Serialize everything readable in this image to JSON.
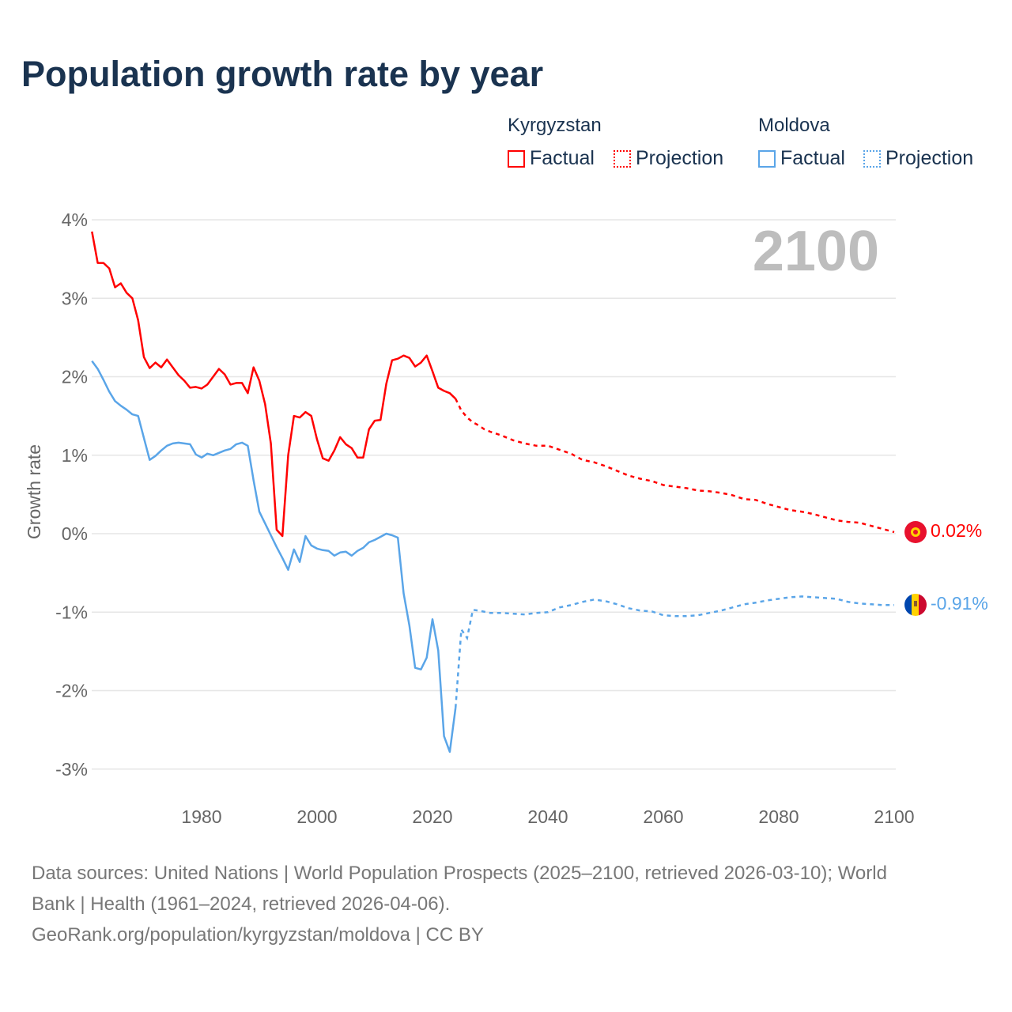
{
  "title": "Population growth rate by year",
  "legend": {
    "groups": [
      {
        "country": "Kyrgyzstan",
        "color": "#ff0000",
        "factual": "Factual",
        "projection": "Projection"
      },
      {
        "country": "Moldova",
        "color": "#5aa5e8",
        "factual": "Factual",
        "projection": "Projection"
      }
    ]
  },
  "year_label": "2100",
  "footer": {
    "line1": "Data sources: United Nations | World Population Prospects (2025–2100, retrieved 2026-03-10); World",
    "line2": "Bank | Health (1961–2024, retrieved 2026-04-06).",
    "line3": "GeoRank.org/population/kyrgyzstan/moldova | CC BY"
  },
  "chart_data": {
    "type": "line",
    "title": "Population growth rate by year",
    "xlabel": "",
    "ylabel": "Growth rate",
    "xlim": [
      1961,
      2100
    ],
    "ylim": [
      -3.3,
      4.2
    ],
    "xticks": [
      1980,
      2000,
      2020,
      2040,
      2060,
      2080,
      2100
    ],
    "yticks": [
      {
        "v": 4,
        "label": "4%"
      },
      {
        "v": 3,
        "label": "3%"
      },
      {
        "v": 2,
        "label": "2%"
      },
      {
        "v": 1,
        "label": "1%"
      },
      {
        "v": 0,
        "label": "0%"
      },
      {
        "v": -1,
        "label": "-1%"
      },
      {
        "v": -2,
        "label": "-2%"
      },
      {
        "v": -3,
        "label": "-3%"
      }
    ],
    "grid": true,
    "series": [
      {
        "name": "Kyrgyzstan",
        "color": "#ff0000",
        "end_label": "0.02%",
        "factual": [
          [
            1961,
            3.85
          ],
          [
            1962,
            3.45
          ],
          [
            1963,
            3.45
          ],
          [
            1964,
            3.38
          ],
          [
            1965,
            3.14
          ],
          [
            1966,
            3.19
          ],
          [
            1967,
            3.07
          ],
          [
            1968,
            3.0
          ],
          [
            1969,
            2.72
          ],
          [
            1970,
            2.25
          ],
          [
            1971,
            2.11
          ],
          [
            1972,
            2.18
          ],
          [
            1973,
            2.12
          ],
          [
            1974,
            2.22
          ],
          [
            1975,
            2.12
          ],
          [
            1976,
            2.02
          ],
          [
            1977,
            1.95
          ],
          [
            1978,
            1.86
          ],
          [
            1979,
            1.87
          ],
          [
            1980,
            1.85
          ],
          [
            1981,
            1.9
          ],
          [
            1982,
            2.0
          ],
          [
            1983,
            2.1
          ],
          [
            1984,
            2.03
          ],
          [
            1985,
            1.9
          ],
          [
            1986,
            1.92
          ],
          [
            1987,
            1.92
          ],
          [
            1988,
            1.79
          ],
          [
            1989,
            2.12
          ],
          [
            1990,
            1.95
          ],
          [
            1991,
            1.65
          ],
          [
            1992,
            1.15
          ],
          [
            1993,
            0.05
          ],
          [
            1994,
            -0.03
          ],
          [
            1995,
            1.0
          ],
          [
            1996,
            1.5
          ],
          [
            1997,
            1.48
          ],
          [
            1998,
            1.55
          ],
          [
            1999,
            1.5
          ],
          [
            2000,
            1.2
          ],
          [
            2001,
            0.96
          ],
          [
            2002,
            0.93
          ],
          [
            2003,
            1.06
          ],
          [
            2004,
            1.23
          ],
          [
            2005,
            1.14
          ],
          [
            2006,
            1.09
          ],
          [
            2007,
            0.97
          ],
          [
            2008,
            0.97
          ],
          [
            2009,
            1.33
          ],
          [
            2010,
            1.44
          ],
          [
            2011,
            1.45
          ],
          [
            2012,
            1.91
          ],
          [
            2013,
            2.21
          ],
          [
            2014,
            2.23
          ],
          [
            2015,
            2.27
          ],
          [
            2016,
            2.24
          ],
          [
            2017,
            2.13
          ],
          [
            2018,
            2.18
          ],
          [
            2019,
            2.27
          ],
          [
            2020,
            2.07
          ],
          [
            2021,
            1.86
          ],
          [
            2022,
            1.82
          ],
          [
            2023,
            1.79
          ],
          [
            2024,
            1.72
          ]
        ],
        "projection": [
          [
            2024,
            1.72
          ],
          [
            2025,
            1.57
          ],
          [
            2026,
            1.48
          ],
          [
            2027,
            1.42
          ],
          [
            2028,
            1.38
          ],
          [
            2029,
            1.33
          ],
          [
            2030,
            1.3
          ],
          [
            2032,
            1.25
          ],
          [
            2034,
            1.19
          ],
          [
            2036,
            1.15
          ],
          [
            2038,
            1.12
          ],
          [
            2040,
            1.12
          ],
          [
            2042,
            1.07
          ],
          [
            2044,
            1.02
          ],
          [
            2046,
            0.94
          ],
          [
            2048,
            0.91
          ],
          [
            2050,
            0.86
          ],
          [
            2052,
            0.8
          ],
          [
            2054,
            0.74
          ],
          [
            2056,
            0.7
          ],
          [
            2058,
            0.67
          ],
          [
            2060,
            0.62
          ],
          [
            2062,
            0.6
          ],
          [
            2064,
            0.58
          ],
          [
            2066,
            0.55
          ],
          [
            2068,
            0.54
          ],
          [
            2070,
            0.52
          ],
          [
            2072,
            0.49
          ],
          [
            2074,
            0.44
          ],
          [
            2076,
            0.43
          ],
          [
            2078,
            0.38
          ],
          [
            2080,
            0.34
          ],
          [
            2082,
            0.3
          ],
          [
            2084,
            0.28
          ],
          [
            2086,
            0.25
          ],
          [
            2088,
            0.21
          ],
          [
            2090,
            0.17
          ],
          [
            2092,
            0.15
          ],
          [
            2094,
            0.14
          ],
          [
            2096,
            0.1
          ],
          [
            2098,
            0.06
          ],
          [
            2100,
            0.02
          ]
        ]
      },
      {
        "name": "Moldova",
        "color": "#5aa5e8",
        "end_label": "-0.91%",
        "factual": [
          [
            1961,
            2.2
          ],
          [
            1962,
            2.1
          ],
          [
            1963,
            1.96
          ],
          [
            1964,
            1.81
          ],
          [
            1965,
            1.69
          ],
          [
            1966,
            1.63
          ],
          [
            1967,
            1.58
          ],
          [
            1968,
            1.52
          ],
          [
            1969,
            1.5
          ],
          [
            1970,
            1.22
          ],
          [
            1971,
            0.94
          ],
          [
            1972,
            0.99
          ],
          [
            1973,
            1.06
          ],
          [
            1974,
            1.12
          ],
          [
            1975,
            1.15
          ],
          [
            1976,
            1.16
          ],
          [
            1977,
            1.15
          ],
          [
            1978,
            1.14
          ],
          [
            1979,
            1.01
          ],
          [
            1980,
            0.97
          ],
          [
            1981,
            1.02
          ],
          [
            1982,
            1.0
          ],
          [
            1983,
            1.03
          ],
          [
            1984,
            1.06
          ],
          [
            1985,
            1.08
          ],
          [
            1986,
            1.14
          ],
          [
            1987,
            1.16
          ],
          [
            1988,
            1.12
          ],
          [
            1989,
            0.68
          ],
          [
            1990,
            0.28
          ],
          [
            1991,
            0.13
          ],
          [
            1992,
            -0.02
          ],
          [
            1993,
            -0.17
          ],
          [
            1994,
            -0.31
          ],
          [
            1995,
            -0.46
          ],
          [
            1996,
            -0.2
          ],
          [
            1997,
            -0.36
          ],
          [
            1998,
            -0.03
          ],
          [
            1999,
            -0.15
          ],
          [
            2000,
            -0.19
          ],
          [
            2001,
            -0.21
          ],
          [
            2002,
            -0.22
          ],
          [
            2003,
            -0.28
          ],
          [
            2004,
            -0.24
          ],
          [
            2005,
            -0.23
          ],
          [
            2006,
            -0.28
          ],
          [
            2007,
            -0.22
          ],
          [
            2008,
            -0.18
          ],
          [
            2009,
            -0.11
          ],
          [
            2010,
            -0.08
          ],
          [
            2011,
            -0.04
          ],
          [
            2012,
            0.0
          ],
          [
            2013,
            -0.02
          ],
          [
            2014,
            -0.05
          ],
          [
            2015,
            -0.76
          ],
          [
            2016,
            -1.17
          ],
          [
            2017,
            -1.71
          ],
          [
            2018,
            -1.73
          ],
          [
            2019,
            -1.58
          ],
          [
            2020,
            -1.09
          ],
          [
            2021,
            -1.49
          ],
          [
            2022,
            -2.58
          ],
          [
            2023,
            -2.78
          ],
          [
            2024,
            -2.22
          ]
        ],
        "projection": [
          [
            2024,
            -2.22
          ],
          [
            2025,
            -1.22
          ],
          [
            2026,
            -1.33
          ],
          [
            2027,
            -0.97
          ],
          [
            2028,
            -0.98
          ],
          [
            2030,
            -1.01
          ],
          [
            2032,
            -1.01
          ],
          [
            2034,
            -1.02
          ],
          [
            2036,
            -1.03
          ],
          [
            2038,
            -1.01
          ],
          [
            2040,
            -1.0
          ],
          [
            2042,
            -0.94
          ],
          [
            2044,
            -0.91
          ],
          [
            2046,
            -0.87
          ],
          [
            2048,
            -0.84
          ],
          [
            2050,
            -0.86
          ],
          [
            2052,
            -0.9
          ],
          [
            2054,
            -0.95
          ],
          [
            2056,
            -0.98
          ],
          [
            2058,
            -0.99
          ],
          [
            2060,
            -1.04
          ],
          [
            2062,
            -1.05
          ],
          [
            2064,
            -1.05
          ],
          [
            2066,
            -1.04
          ],
          [
            2068,
            -1.01
          ],
          [
            2070,
            -0.98
          ],
          [
            2072,
            -0.94
          ],
          [
            2074,
            -0.9
          ],
          [
            2076,
            -0.88
          ],
          [
            2078,
            -0.85
          ],
          [
            2080,
            -0.83
          ],
          [
            2082,
            -0.81
          ],
          [
            2084,
            -0.8
          ],
          [
            2086,
            -0.81
          ],
          [
            2088,
            -0.82
          ],
          [
            2090,
            -0.83
          ],
          [
            2092,
            -0.87
          ],
          [
            2094,
            -0.89
          ],
          [
            2096,
            -0.9
          ],
          [
            2098,
            -0.91
          ],
          [
            2100,
            -0.91
          ]
        ]
      }
    ]
  }
}
